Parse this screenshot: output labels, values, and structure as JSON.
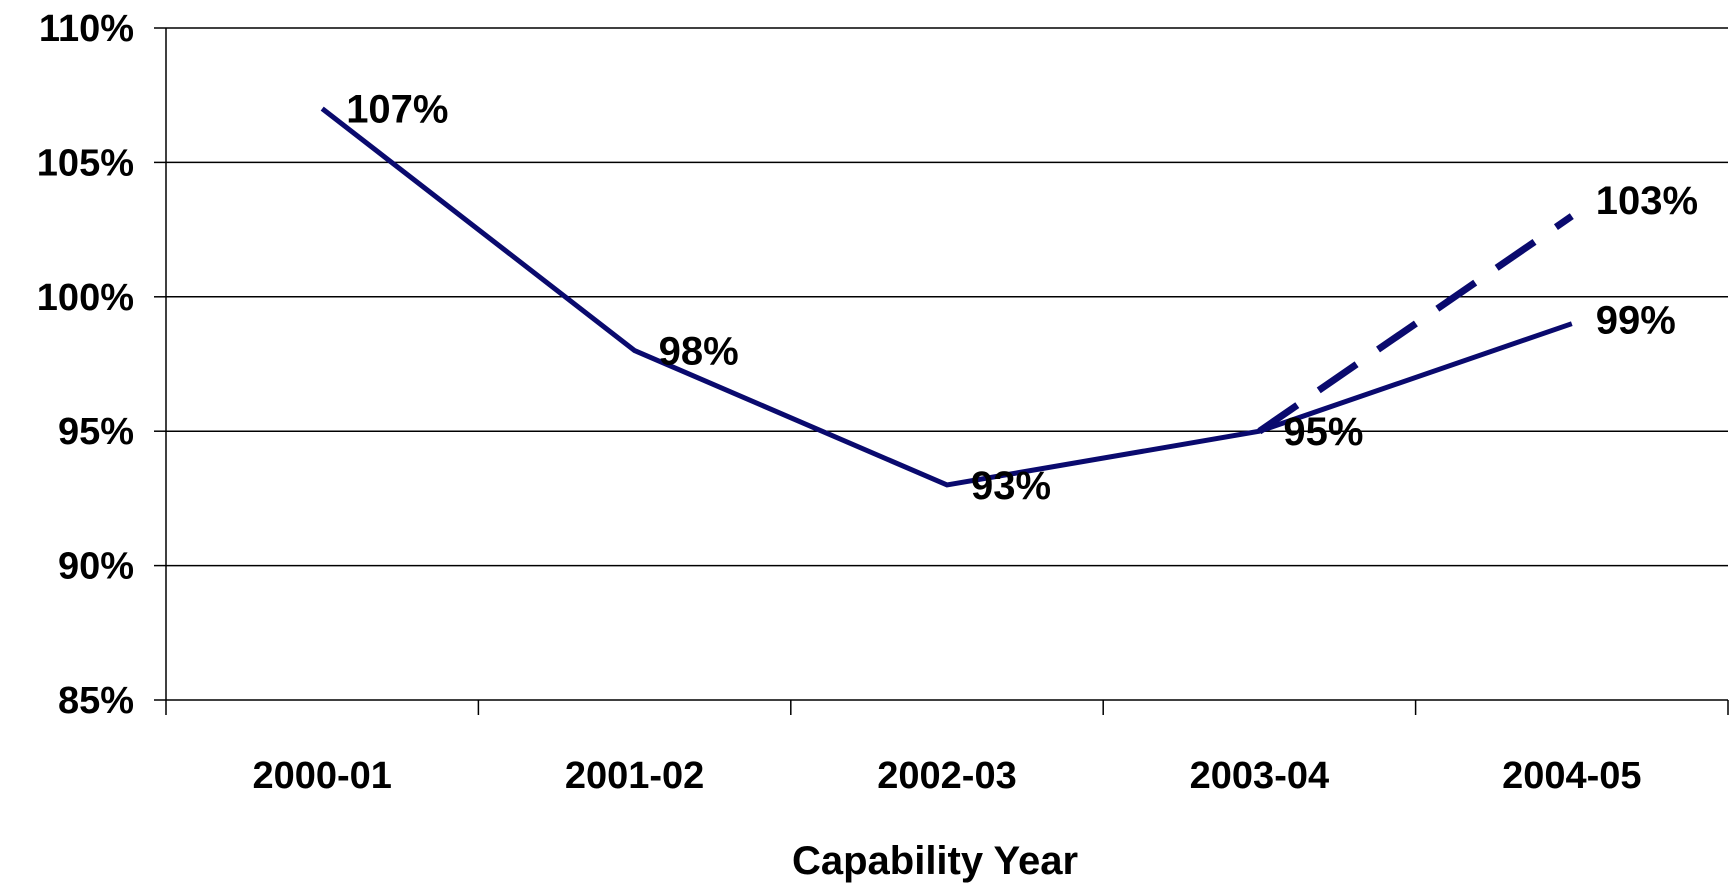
{
  "chart_data": {
    "type": "line",
    "title": "",
    "xlabel": "Capability Year",
    "ylabel": "",
    "categories": [
      "2000-01",
      "2001-02",
      "2002-03",
      "2003-04",
      "2004-05"
    ],
    "ylim": [
      85,
      110
    ],
    "yticks": [
      85,
      90,
      95,
      100,
      105,
      110
    ],
    "ytick_labels": [
      "85%",
      "90%",
      "95%",
      "100%",
      "105%",
      "110%"
    ],
    "grid": "horizontal",
    "legend": "none",
    "series": [
      {
        "line_style": "solid",
        "color": "#0A0A6E",
        "values": [
          107,
          98,
          93,
          95,
          99
        ],
        "labels": [
          "107%",
          "98%",
          "93%",
          "95%",
          "99%"
        ]
      },
      {
        "line_style": "dashed",
        "color": "#0A0A6E",
        "values": [
          null,
          null,
          null,
          95,
          103
        ],
        "labels": [
          "",
          "",
          "",
          "",
          "103%"
        ]
      }
    ]
  }
}
